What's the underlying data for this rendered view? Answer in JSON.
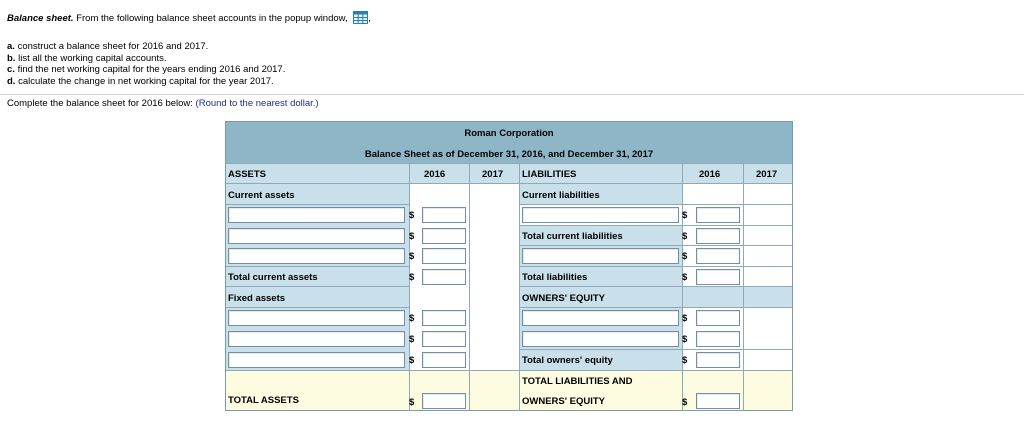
{
  "intro": {
    "title": "Balance sheet.",
    "text": "From the following balance sheet accounts in the popup window,",
    "after_icon": ","
  },
  "tasks": [
    {
      "letter": "a.",
      "text": "construct a balance sheet for 2016 and 2017."
    },
    {
      "letter": "b.",
      "text": "list all the working capital accounts."
    },
    {
      "letter": "c.",
      "text": "find the net working capital for the years ending 2016 and 2017."
    },
    {
      "letter": "d.",
      "text": "calculate the change in net working capital for the year 2017."
    }
  ],
  "complete": {
    "text": "Complete the balance sheet for 2016 below:",
    "hint": "(Round to the nearest dollar.)"
  },
  "sheet": {
    "company": "Roman Corporation",
    "subtitle": "Balance Sheet as of December 31, 2016, and December 31, 2017",
    "assets_header": "ASSETS",
    "liabilities_header": "LIABILITIES",
    "year1": "2016",
    "year2": "2017",
    "current_assets": "Current assets",
    "total_current_assets": "Total current assets",
    "fixed_assets": "Fixed assets",
    "total_assets": "TOTAL ASSETS",
    "current_liabilities": "Current liabilities",
    "total_current_liabilities": "Total current liabilities",
    "total_liabilities": "Total liabilities",
    "owners_equity": "OWNERS' EQUITY",
    "total_owners_equity": "Total owners' equity",
    "total_liab_equity_1": "TOTAL LIABILITIES AND",
    "total_liab_equity_2": "OWNERS' EQUITY",
    "dollar": "$"
  }
}
